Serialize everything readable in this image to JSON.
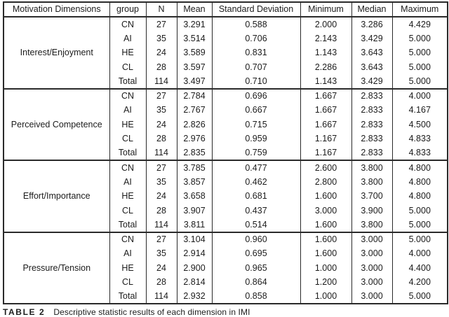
{
  "colors": {
    "text": "#1c1c1c",
    "border": "#2a2a2a",
    "background": "#ffffff"
  },
  "caption": {
    "label": "TABLE 2",
    "text": "Descriptive statistic results of each dimension in IMI"
  },
  "chart_data": {
    "type": "table",
    "title": "TABLE 2  Descriptive statistic results of each dimension in IMI",
    "columns": [
      "Motivation Dimensions",
      "group",
      "N",
      "Mean",
      "Standard Deviation",
      "Minimum",
      "Median",
      "Maximum"
    ],
    "sections": [
      {
        "dimension": "Interest/Enjoyment",
        "rows": [
          [
            "CN",
            "27",
            "3.291",
            "0.588",
            "2.000",
            "3.286",
            "4.429"
          ],
          [
            "AI",
            "35",
            "3.514",
            "0.706",
            "2.143",
            "3.429",
            "5.000"
          ],
          [
            "HE",
            "24",
            "3.589",
            "0.831",
            "1.143",
            "3.643",
            "5.000"
          ],
          [
            "CL",
            "28",
            "3.597",
            "0.707",
            "2.286",
            "3.643",
            "5.000"
          ],
          [
            "Total",
            "114",
            "3.497",
            "0.710",
            "1.143",
            "3.429",
            "5.000"
          ]
        ]
      },
      {
        "dimension": "Perceived Competence",
        "rows": [
          [
            "CN",
            "27",
            "2.784",
            "0.696",
            "1.667",
            "2.833",
            "4.000"
          ],
          [
            "AI",
            "35",
            "2.767",
            "0.667",
            "1.667",
            "2.833",
            "4.167"
          ],
          [
            "HE",
            "24",
            "2.826",
            "0.715",
            "1.667",
            "2.833",
            "4.500"
          ],
          [
            "CL",
            "28",
            "2.976",
            "0.959",
            "1.167",
            "2.833",
            "4.833"
          ],
          [
            "Total",
            "114",
            "2.835",
            "0.759",
            "1.167",
            "2.833",
            "4.833"
          ]
        ]
      },
      {
        "dimension": "Effort/Importance",
        "rows": [
          [
            "CN",
            "27",
            "3.785",
            "0.477",
            "2.600",
            "3.800",
            "4.800"
          ],
          [
            "AI",
            "35",
            "3.857",
            "0.462",
            "2.800",
            "3.800",
            "4.800"
          ],
          [
            "HE",
            "24",
            "3.658",
            "0.681",
            "1.600",
            "3.700",
            "4.800"
          ],
          [
            "CL",
            "28",
            "3.907",
            "0.437",
            "3.000",
            "3.900",
            "5.000"
          ],
          [
            "Total",
            "114",
            "3.811",
            "0.514",
            "1.600",
            "3.800",
            "5.000"
          ]
        ]
      },
      {
        "dimension": "Pressure/Tension",
        "rows": [
          [
            "CN",
            "27",
            "3.104",
            "0.960",
            "1.600",
            "3.000",
            "5.000"
          ],
          [
            "AI",
            "35",
            "2.914",
            "0.695",
            "1.600",
            "3.000",
            "4.000"
          ],
          [
            "HE",
            "24",
            "2.900",
            "0.965",
            "1.000",
            "3.000",
            "4.400"
          ],
          [
            "CL",
            "28",
            "2.814",
            "0.864",
            "1.200",
            "3.000",
            "4.200"
          ],
          [
            "Total",
            "114",
            "2.932",
            "0.858",
            "1.000",
            "3.000",
            "5.000"
          ]
        ]
      }
    ]
  }
}
